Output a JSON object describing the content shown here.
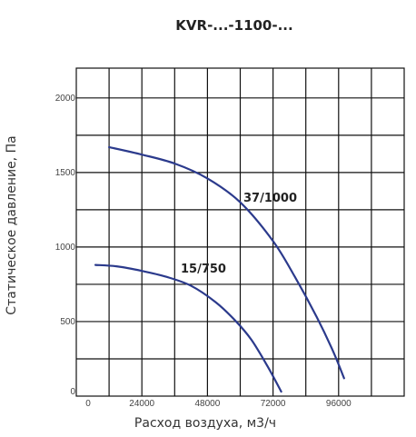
{
  "chart_data": {
    "type": "line",
    "title": "KVR-...-1100-...",
    "xlabel": "Расход воздуха, м3/ч",
    "ylabel": "Статическое давление, Па",
    "xlim": [
      0,
      120000
    ],
    "ylim": [
      0,
      2200
    ],
    "x_ticks": [
      0,
      24000,
      48000,
      72000,
      96000
    ],
    "y_ticks": [
      0,
      500,
      1000,
      1500,
      2000
    ],
    "x_tick_labels": [
      "0",
      "24000",
      "48000",
      "72000",
      "96000"
    ],
    "y_tick_labels": [
      "0",
      "500",
      "1000",
      "1500",
      "2000"
    ],
    "grid": true,
    "line_color": "#2b3a8c",
    "series": [
      {
        "name": "37/1000",
        "x": [
          12000,
          24000,
          36000,
          48000,
          60000,
          72000,
          80000,
          88000,
          94000,
          98000
        ],
        "y": [
          1670,
          1620,
          1560,
          1460,
          1300,
          1040,
          800,
          530,
          300,
          120
        ]
      },
      {
        "name": "15/750",
        "x": [
          7000,
          15000,
          24000,
          33000,
          42000,
          51000,
          58000,
          64000,
          70000,
          75000
        ],
        "y": [
          880,
          870,
          840,
          800,
          740,
          630,
          510,
          380,
          200,
          30
        ]
      }
    ]
  }
}
